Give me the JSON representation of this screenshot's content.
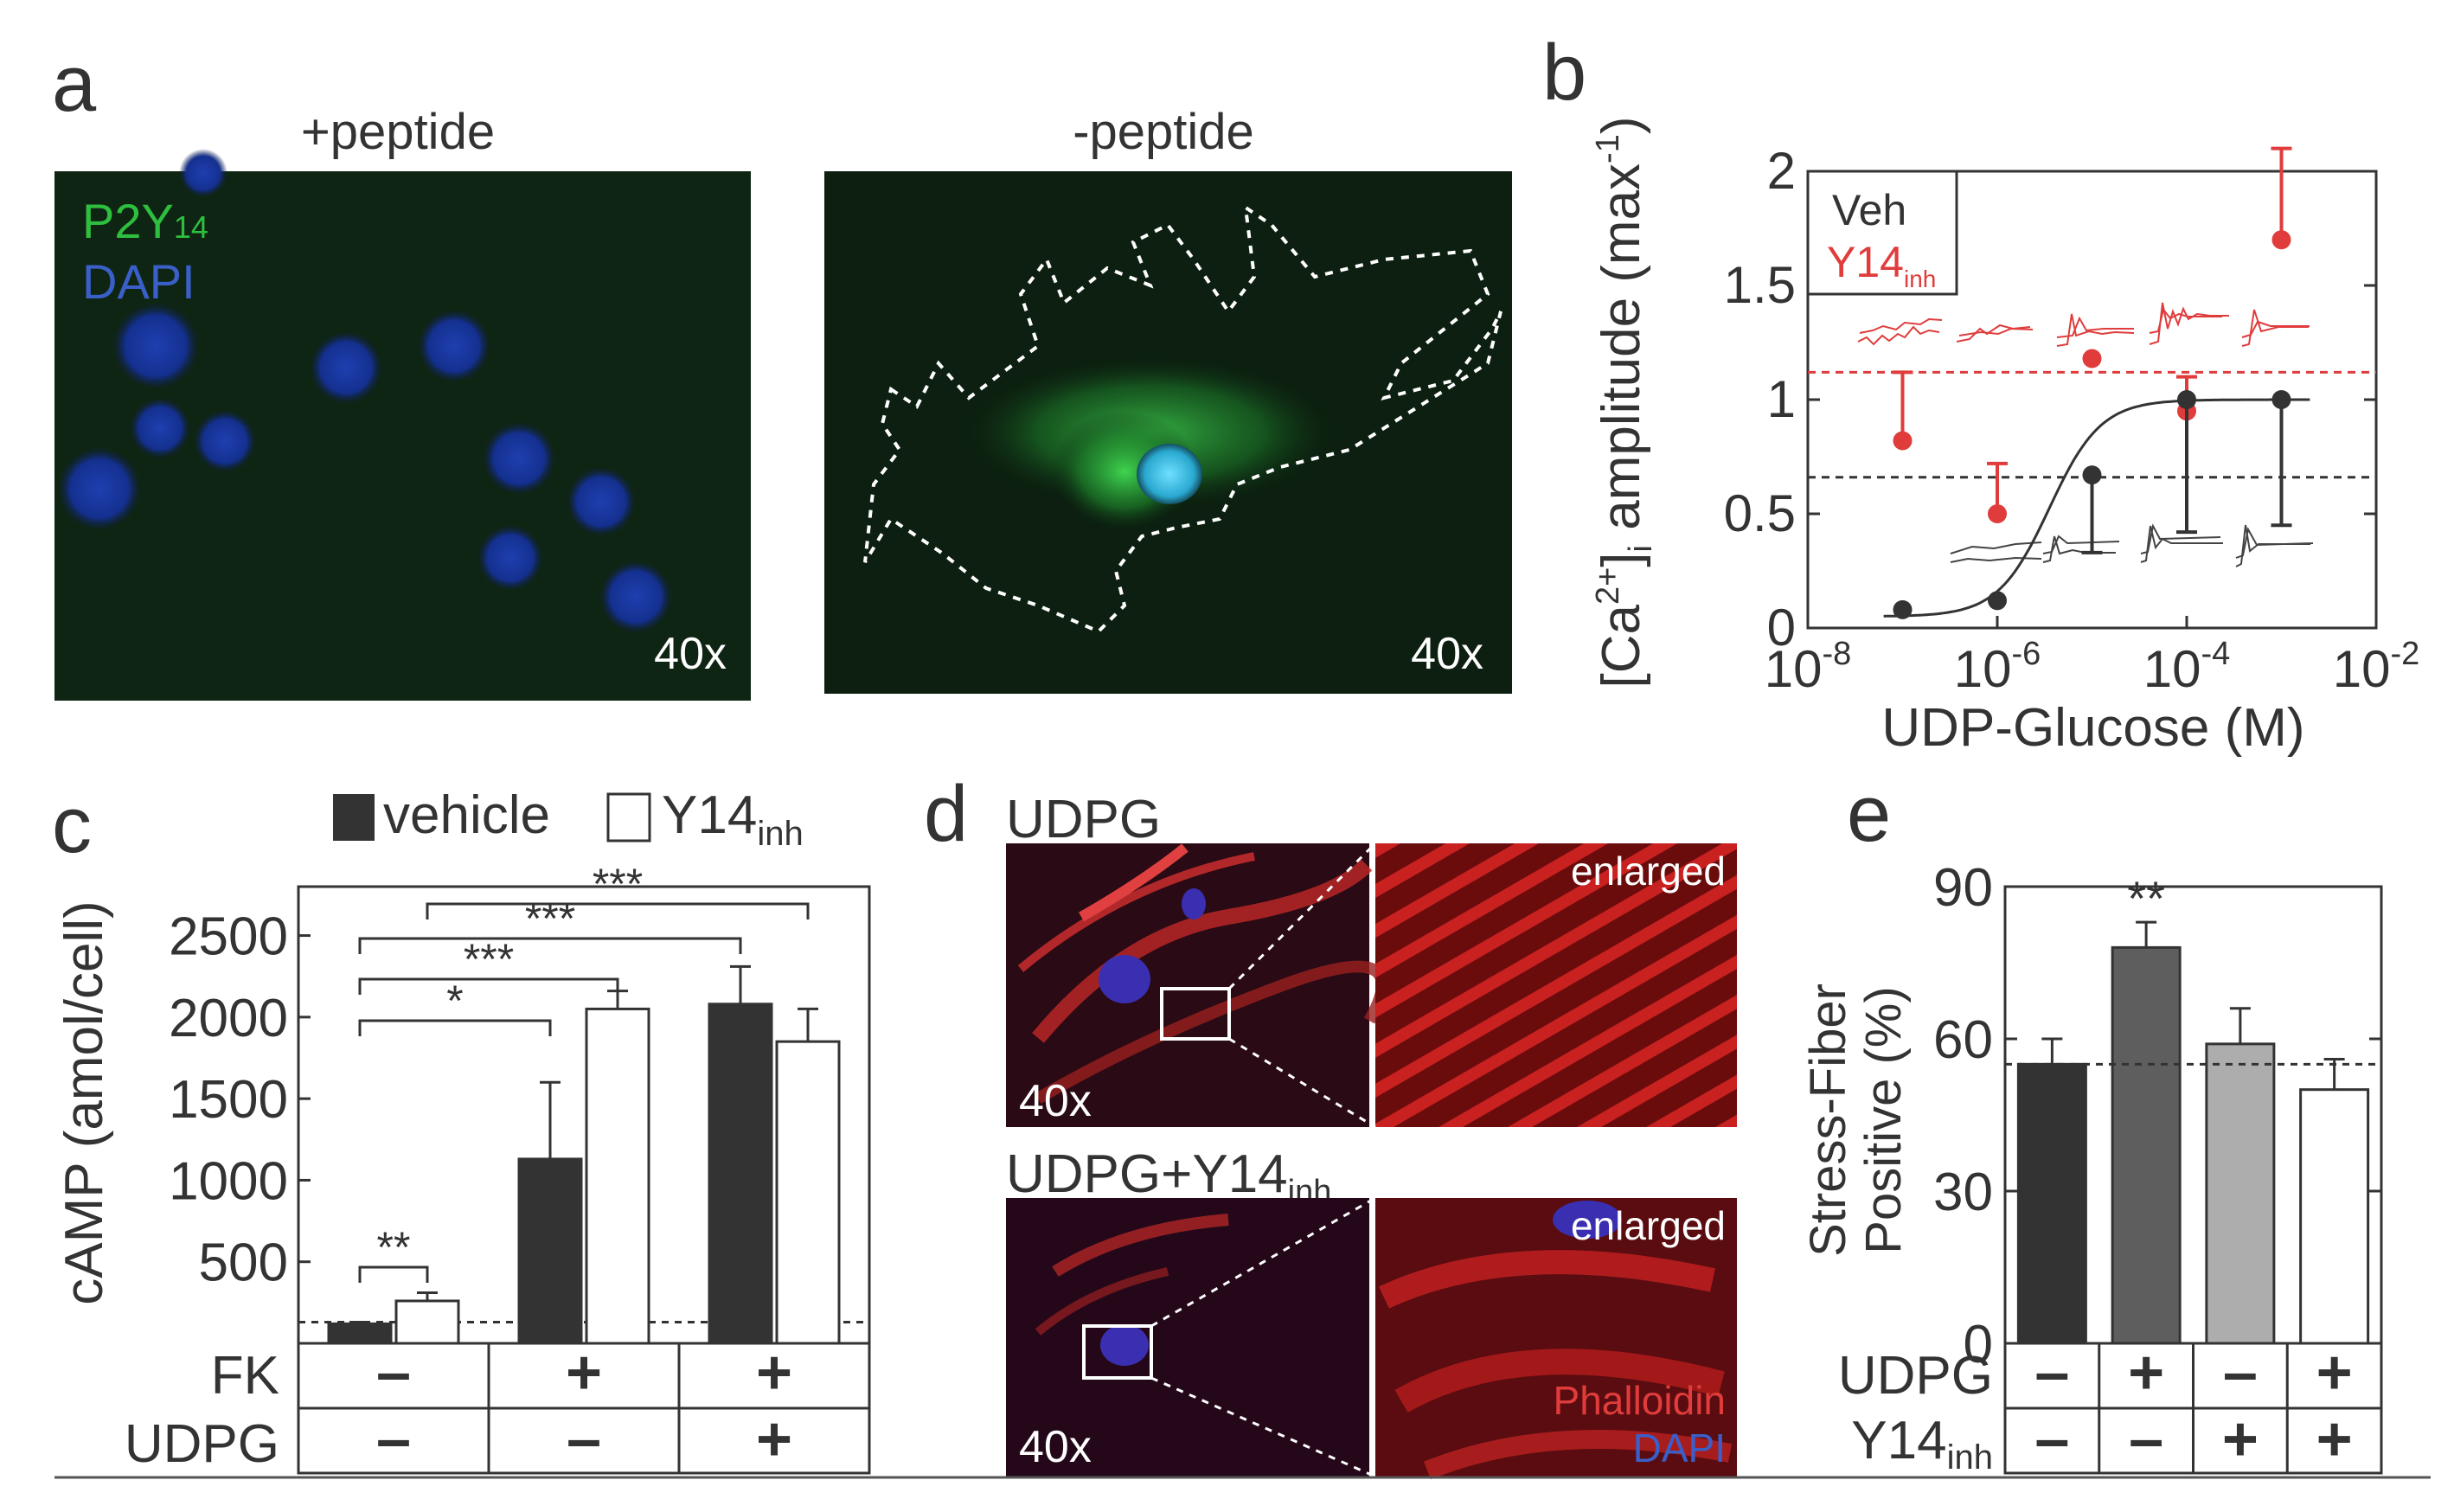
{
  "panel_letters": {
    "a": "a",
    "b": "b",
    "c": "c",
    "d": "d",
    "e": "e"
  },
  "panel_a": {
    "left_title": "+peptide",
    "right_title": "-peptide",
    "stain_p2y": "P2Y",
    "stain_p2y_sub": "14",
    "stain_dapi": "DAPI",
    "mag_left": "40x",
    "mag_right": "40x"
  },
  "panel_b": {
    "ylabel_pre": "[Ca",
    "ylabel_sup": "2+",
    "ylabel_mid": "]",
    "ylabel_sub": "i",
    "ylabel_post": " amplitude (max",
    "ylabel_sup2": "-1",
    "ylabel_end": ")",
    "xlabel": "UDP-Glucose (M)",
    "xtick_base": "10",
    "xtick_exps": [
      "-8",
      "-6",
      "-4",
      "-2"
    ],
    "yticks": [
      "0",
      "0.5",
      "1",
      "1.5",
      "2"
    ],
    "legend_veh": "Veh",
    "legend_y14": "Y14",
    "legend_y14_sub": "inh",
    "colors": {
      "veh": "#333333",
      "y14": "#e03c3c"
    }
  },
  "panel_c": {
    "legend_vehicle": "vehicle",
    "legend_y14": "Y14",
    "legend_y14_sub": "inh",
    "ylabel": "cAMP (amol/cell)",
    "yticks": [
      "500",
      "1000",
      "1500",
      "2000",
      "2500"
    ],
    "row_fk": "FK",
    "row_udpg": "UDPG",
    "fk_signs": [
      "–",
      "+",
      "+"
    ],
    "udpg_signs": [
      "–",
      "–",
      "+"
    ],
    "sig": [
      "**",
      "*",
      "***",
      "***",
      "***"
    ]
  },
  "panel_d": {
    "top_label": "UDPG",
    "bottom_label": "UDPG+Y14",
    "bottom_label_sub": "inh",
    "enlarged_top": "enlarged",
    "enlarged_bottom": "enlarged",
    "mag_top": "40x",
    "mag_bottom": "40x",
    "stain_phalloidin": "Phalloidin",
    "stain_dapi": "DAPI"
  },
  "panel_e": {
    "ylabel_line1": "Stress-Fiber",
    "ylabel_line2": "Positive (%)",
    "yticks": [
      "0",
      "30",
      "60",
      "90"
    ],
    "row_udpg": "UDPG",
    "row_y14": "Y14",
    "row_y14_sub": "inh",
    "udpg_signs": [
      "–",
      "+",
      "–",
      "+"
    ],
    "y14_signs": [
      "–",
      "–",
      "+",
      "+"
    ],
    "sig": "**"
  },
  "chart_data": [
    {
      "type": "scatter",
      "panel": "b",
      "xlabel": "UDP-Glucose (M)",
      "ylabel": "[Ca2+]i amplitude (max-1)",
      "xscale": "log",
      "xlim": [
        1e-08,
        0.01
      ],
      "ylim": [
        0,
        2
      ],
      "legend": "top-left",
      "series": [
        {
          "name": "Veh",
          "x": [
            1e-07,
            1e-06,
            1e-05,
            0.0001,
            0.001
          ],
          "y": [
            0.08,
            0.12,
            0.67,
            1.0,
            1.0
          ],
          "err_low": [
            0.0,
            0.0,
            0.33,
            0.42,
            0.45
          ]
        },
        {
          "name": "Y14inh",
          "x": [
            1e-07,
            1e-06,
            1e-05,
            0.0001,
            0.001
          ],
          "y": [
            0.82,
            0.5,
            1.18,
            0.95,
            1.7
          ],
          "err_high": [
            1.12,
            0.72,
            null,
            1.1,
            2.1
          ]
        }
      ],
      "reference_lines": {
        "veh": 0.66,
        "y14": 1.12
      }
    },
    {
      "type": "bar",
      "panel": "c",
      "ylabel": "cAMP (amol/cell)",
      "ylim": [
        0,
        2800
      ],
      "categories": [
        "FK- UDPG-",
        "FK+ UDPG-",
        "FK+ UDPG+"
      ],
      "series": [
        {
          "name": "vehicle",
          "values": [
            120,
            1130,
            2080
          ],
          "errors": [
            10,
            470,
            230
          ]
        },
        {
          "name": "Y14inh",
          "values": [
            260,
            2050,
            1850
          ],
          "errors": [
            50,
            110,
            200
          ]
        }
      ],
      "baseline": 130
    },
    {
      "type": "bar",
      "panel": "e",
      "ylabel": "Stress-Fiber Positive (%)",
      "ylim": [
        0,
        90
      ],
      "categories": [
        "UDPG- Y14inh-",
        "UDPG+ Y14inh-",
        "UDPG- Y14inh+",
        "UDPG+ Y14inh+"
      ],
      "values": [
        55,
        78,
        59,
        50
      ],
      "errors": [
        5,
        5,
        7,
        6
      ],
      "bar_colors": [
        "#333333",
        "#5e5e5e",
        "#adadad",
        "#ffffff"
      ],
      "baseline": 55
    }
  ]
}
